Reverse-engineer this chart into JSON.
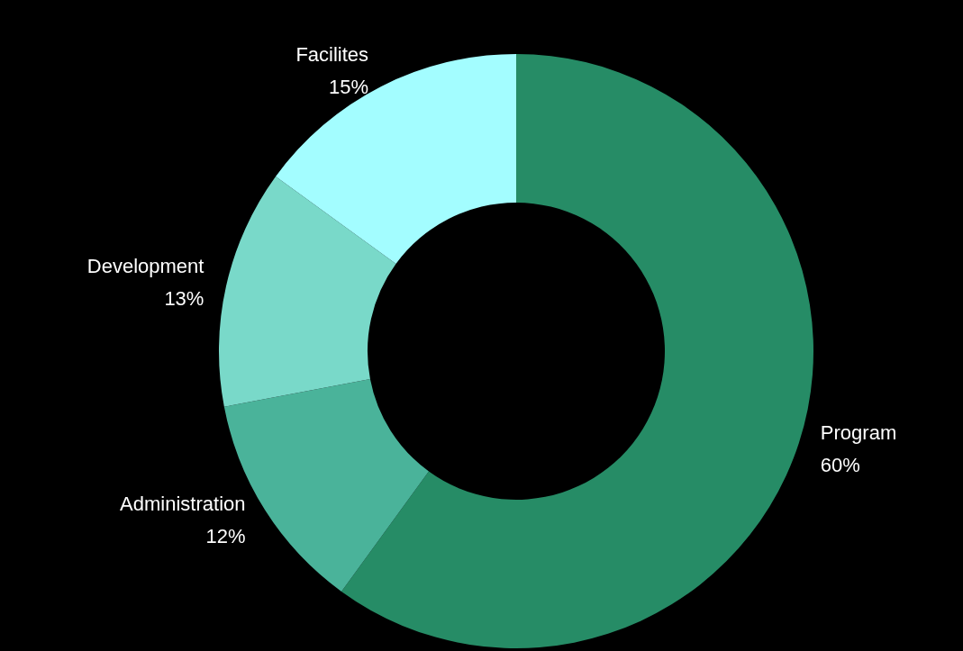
{
  "chart_data": {
    "type": "donut",
    "categories": [
      "Program",
      "Administration",
      "Development",
      "Facilites"
    ],
    "values": [
      60,
      12,
      13,
      15
    ],
    "value_labels": [
      "60%",
      "12%",
      "13%",
      "15%"
    ],
    "colors": [
      "#268c66",
      "#4ab39a",
      "#79d9c9",
      "#a3fdff"
    ],
    "legend": false
  }
}
